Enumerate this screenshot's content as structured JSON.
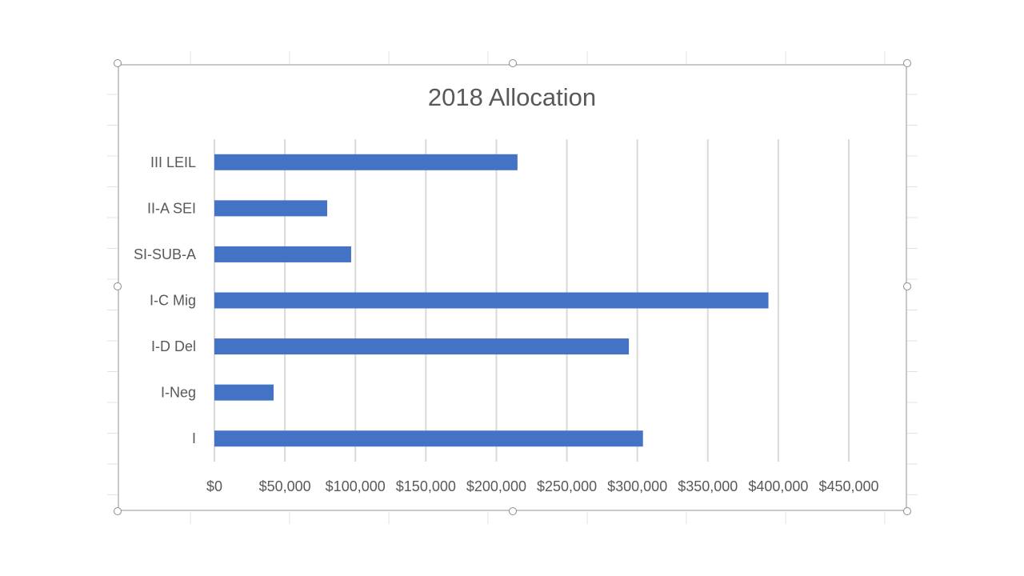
{
  "chart_data": {
    "type": "bar",
    "orientation": "horizontal",
    "title": "2018 Allocation",
    "categories": [
      "III LEIL",
      "II-A SEI",
      "SI-SUB-A",
      "I-C Mig",
      "I-D Del",
      "I-Neg",
      "I"
    ],
    "values": [
      215000,
      80000,
      97000,
      393000,
      294000,
      42000,
      304000
    ],
    "x_ticks": [
      "$0",
      "$50,000",
      "$100,000",
      "$150,000",
      "$200,000",
      "$250,000",
      "$300,000",
      "$350,000",
      "$400,000",
      "$450,000"
    ],
    "xlim": [
      0,
      450000
    ],
    "grid": true,
    "bar_color": "#4472c4",
    "gridline_color": "#d9d9d9",
    "text_color": "#595959"
  }
}
